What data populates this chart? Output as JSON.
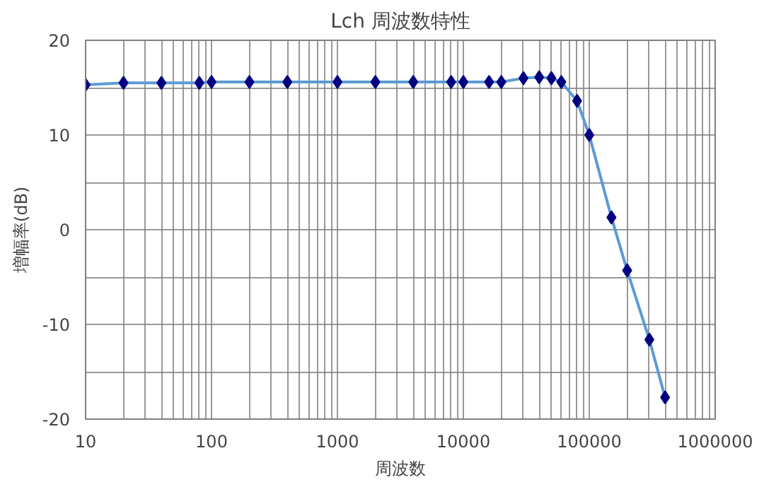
{
  "chart_data": {
    "type": "line",
    "title": "Lch 周波数特性",
    "xlabel": "周波数",
    "ylabel": "増幅率(dB)",
    "log": "x",
    "grid": true,
    "marker": "diamond",
    "x": [
      10,
      20,
      40,
      80,
      100,
      200,
      400,
      1000,
      2000,
      4000,
      8000,
      10000,
      16000,
      20000,
      30000,
      40000,
      50000,
      60000,
      80000,
      100000,
      150000,
      200000,
      300000,
      400000
    ],
    "series": [
      {
        "color": "#000080",
        "values": [
          15.3,
          15.5,
          15.5,
          15.5,
          15.6,
          15.6,
          15.6,
          15.6,
          15.6,
          15.6,
          15.6,
          15.6,
          15.6,
          15.6,
          16.0,
          16.1,
          16.0,
          15.6,
          13.6,
          10.0,
          1.3,
          -4.3,
          -11.6,
          -17.7
        ]
      }
    ],
    "xlim": [
      10,
      1000000
    ],
    "ylim": [
      -20,
      20
    ],
    "xticks": [
      10,
      {
        "value": 20,
        "label": null
      },
      {
        "value": 30,
        "label": null
      },
      {
        "value": 40,
        "label": null
      },
      {
        "value": 50,
        "label": null
      },
      {
        "value": 60,
        "label": null
      },
      {
        "value": 70,
        "label": null
      },
      {
        "value": 80,
        "label": null
      },
      {
        "value": 90,
        "label": null
      },
      100,
      {
        "value": 200,
        "label": null
      },
      {
        "value": 300,
        "label": null
      },
      {
        "value": 400,
        "label": null
      },
      {
        "value": 500,
        "label": null
      },
      {
        "value": 600,
        "label": null
      },
      {
        "value": 700,
        "label": null
      },
      {
        "value": 800,
        "label": null
      },
      {
        "value": 900,
        "label": null
      },
      1000,
      {
        "value": 2000,
        "label": null
      },
      {
        "value": 3000,
        "label": null
      },
      {
        "value": 4000,
        "label": null
      },
      {
        "value": 5000,
        "label": null
      },
      {
        "value": 6000,
        "label": null
      },
      {
        "value": 7000,
        "label": null
      },
      {
        "value": 8000,
        "label": null
      },
      {
        "value": 9000,
        "label": null
      },
      10000,
      {
        "value": 20000,
        "label": null
      },
      {
        "value": 30000,
        "label": null
      },
      {
        "value": 40000,
        "label": null
      },
      {
        "value": 50000,
        "label": null
      },
      {
        "value": 60000,
        "label": null
      },
      {
        "value": 70000,
        "label": null
      },
      {
        "value": 80000,
        "label": null
      },
      {
        "value": 90000,
        "label": null
      },
      100000,
      {
        "value": 200000,
        "label": null
      },
      {
        "value": 300000,
        "label": null
      },
      {
        "value": 400000,
        "label": null
      },
      {
        "value": 500000,
        "label": null
      },
      {
        "value": 600000,
        "label": null
      },
      {
        "value": 700000,
        "label": null
      },
      {
        "value": 800000,
        "label": null
      },
      {
        "value": 900000,
        "label": null
      },
      1000000
    ],
    "yticks": [
      -20,
      {
        "value": -15,
        "label": null
      },
      -10,
      {
        "value": -5,
        "label": null
      },
      0,
      {
        "value": 5,
        "label": null
      },
      10,
      {
        "value": 15,
        "label": null
      },
      20
    ]
  }
}
